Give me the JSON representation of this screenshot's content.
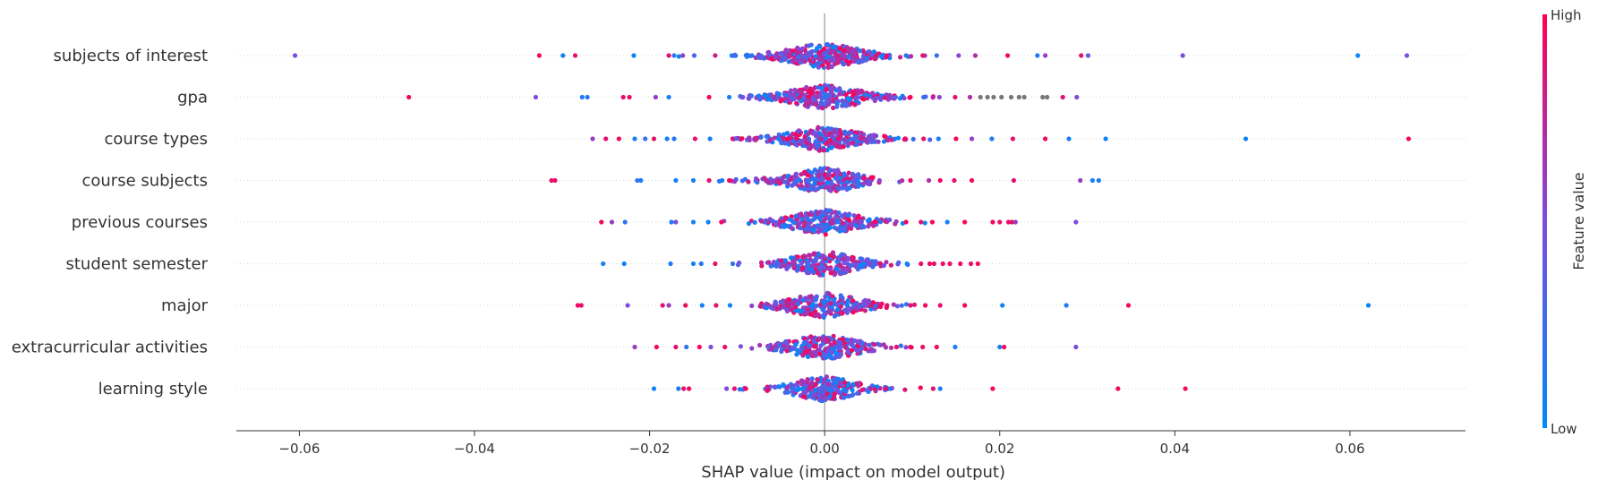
{
  "chart_data": {
    "type": "scatter",
    "subtype": "shap-beeswarm",
    "xlabel": "SHAP value (impact on model output)",
    "xlim": [
      -0.0672,
      0.0732
    ],
    "xticks": [
      -0.06,
      -0.04,
      -0.02,
      0.0,
      0.02,
      0.04,
      0.06
    ],
    "xtick_labels": [
      "−0.06",
      "−0.04",
      "−0.02",
      "0.00",
      "0.02",
      "0.04",
      "0.06"
    ],
    "features": [
      {
        "name": "subjects of interest",
        "points": [
          {
            "x": -0.0605,
            "v": 0.5
          },
          {
            "x": -0.0326,
            "v": 0.95
          },
          {
            "x": -0.0299,
            "v": 0.1
          },
          {
            "x": -0.0285,
            "v": 0.9
          },
          {
            "x": -0.0218,
            "v": 0.05
          },
          {
            "x": -0.0178,
            "v": 0.9
          },
          {
            "x": -0.0172,
            "v": 0.2
          },
          {
            "x": -0.0162,
            "v": 0.6
          },
          {
            "x": -0.0149,
            "v": 0.3
          },
          {
            "x": -0.0125,
            "v": 0.8
          },
          {
            "x": -0.0083,
            "v": 0.1
          },
          {
            "x": 0.0071,
            "v": 0.9
          },
          {
            "x": 0.0093,
            "v": 0.15
          },
          {
            "x": 0.0112,
            "v": 0.9
          },
          {
            "x": 0.0128,
            "v": 0.2
          },
          {
            "x": 0.0153,
            "v": 0.55
          },
          {
            "x": 0.0172,
            "v": 0.7
          },
          {
            "x": 0.0209,
            "v": 0.95
          },
          {
            "x": 0.0243,
            "v": 0.1
          },
          {
            "x": 0.0252,
            "v": 0.6
          },
          {
            "x": 0.0293,
            "v": 0.9
          },
          {
            "x": 0.0301,
            "v": 0.4
          },
          {
            "x": 0.0409,
            "v": 0.5
          },
          {
            "x": 0.0609,
            "v": 0.05
          },
          {
            "x": 0.0665,
            "v": 0.5
          }
        ],
        "core": {
          "center": 0.0,
          "spread": 0.0075,
          "halfwidth": 0.0042,
          "count": 330
        }
      },
      {
        "name": "gpa",
        "points": [
          {
            "x": -0.0475,
            "v": 0.95
          },
          {
            "x": -0.033,
            "v": 0.5
          },
          {
            "x": -0.0277,
            "v": 0.1
          },
          {
            "x": -0.0271,
            "v": 0.15
          },
          {
            "x": -0.023,
            "v": 0.9
          },
          {
            "x": -0.0223,
            "v": 0.95
          },
          {
            "x": -0.0193,
            "v": 0.6
          },
          {
            "x": -0.0178,
            "v": 0.1
          },
          {
            "x": -0.0132,
            "v": 0.95
          },
          {
            "x": -0.0109,
            "v": 0.1
          },
          {
            "x": 0.0098,
            "v": 0.95
          },
          {
            "x": 0.0113,
            "v": 0.2
          },
          {
            "x": 0.0131,
            "v": 0.55
          },
          {
            "x": 0.0149,
            "v": 0.9
          },
          {
            "x": 0.0166,
            "v": 0.7
          },
          {
            "x": 0.0178,
            "v": null
          },
          {
            "x": 0.0186,
            "v": null
          },
          {
            "x": 0.0193,
            "v": null
          },
          {
            "x": 0.0202,
            "v": null
          },
          {
            "x": 0.0213,
            "v": null
          },
          {
            "x": 0.0222,
            "v": null
          },
          {
            "x": 0.0228,
            "v": null
          },
          {
            "x": 0.0249,
            "v": null
          },
          {
            "x": 0.0254,
            "v": null
          },
          {
            "x": 0.0272,
            "v": 0.9
          },
          {
            "x": 0.0288,
            "v": 0.5
          }
        ],
        "core": {
          "center": 0.0,
          "spread": 0.0075,
          "halfwidth": 0.0042,
          "count": 300
        }
      },
      {
        "name": "course types",
        "points": [
          {
            "x": -0.0265,
            "v": 0.6
          },
          {
            "x": -0.025,
            "v": 0.9
          },
          {
            "x": -0.0235,
            "v": 0.95
          },
          {
            "x": -0.0217,
            "v": 0.1
          },
          {
            "x": -0.0205,
            "v": 0.2
          },
          {
            "x": -0.0195,
            "v": 0.9
          },
          {
            "x": -0.018,
            "v": 0.1
          },
          {
            "x": -0.0172,
            "v": 0.15
          },
          {
            "x": -0.0148,
            "v": 0.9
          },
          {
            "x": -0.0131,
            "v": 0.1
          },
          {
            "x": 0.0092,
            "v": 0.95
          },
          {
            "x": 0.0113,
            "v": 0.9
          },
          {
            "x": 0.013,
            "v": 0.1
          },
          {
            "x": 0.015,
            "v": 0.95
          },
          {
            "x": 0.0168,
            "v": 0.6
          },
          {
            "x": 0.0191,
            "v": 0.1
          },
          {
            "x": 0.0215,
            "v": 0.9
          },
          {
            "x": 0.0252,
            "v": 0.95
          },
          {
            "x": 0.0279,
            "v": 0.1
          },
          {
            "x": 0.0321,
            "v": 0.05
          },
          {
            "x": 0.0481,
            "v": 0.05
          },
          {
            "x": 0.0667,
            "v": 0.95
          }
        ],
        "core": {
          "center": 0.0,
          "spread": 0.0075,
          "halfwidth": 0.004,
          "count": 300
        }
      },
      {
        "name": "course subjects",
        "points": [
          {
            "x": -0.0312,
            "v": 0.95
          },
          {
            "x": -0.0308,
            "v": 0.9
          },
          {
            "x": -0.0214,
            "v": 0.2
          },
          {
            "x": -0.021,
            "v": 0.1
          },
          {
            "x": -0.017,
            "v": 0.05
          },
          {
            "x": -0.015,
            "v": 0.1
          },
          {
            "x": -0.0132,
            "v": 0.9
          },
          {
            "x": -0.0117,
            "v": 0.1
          },
          {
            "x": -0.0109,
            "v": 0.95
          },
          {
            "x": 0.0098,
            "v": 0.9
          },
          {
            "x": 0.0119,
            "v": 0.7
          },
          {
            "x": 0.0132,
            "v": 0.95
          },
          {
            "x": 0.0148,
            "v": 0.9
          },
          {
            "x": 0.0168,
            "v": 0.95
          },
          {
            "x": 0.0216,
            "v": 0.9
          },
          {
            "x": 0.0292,
            "v": 0.6
          },
          {
            "x": 0.0306,
            "v": 0.1
          },
          {
            "x": 0.0313,
            "v": 0.1
          }
        ],
        "core": {
          "center": 0.0,
          "spread": 0.007,
          "halfwidth": 0.004,
          "count": 280
        }
      },
      {
        "name": "previous courses",
        "points": [
          {
            "x": -0.0255,
            "v": 0.95
          },
          {
            "x": -0.0243,
            "v": 0.6
          },
          {
            "x": -0.0228,
            "v": 0.2
          },
          {
            "x": -0.0175,
            "v": 0.1
          },
          {
            "x": -0.017,
            "v": 0.5
          },
          {
            "x": -0.015,
            "v": 0.1
          },
          {
            "x": -0.0133,
            "v": 0.05
          },
          {
            "x": -0.0118,
            "v": 0.95
          },
          {
            "x": 0.0093,
            "v": 0.95
          },
          {
            "x": 0.011,
            "v": 0.9
          },
          {
            "x": 0.0123,
            "v": 0.95
          },
          {
            "x": 0.014,
            "v": 0.1
          },
          {
            "x": 0.016,
            "v": 0.95
          },
          {
            "x": 0.0192,
            "v": 0.95
          },
          {
            "x": 0.02,
            "v": 0.9
          },
          {
            "x": 0.021,
            "v": 0.9
          },
          {
            "x": 0.0214,
            "v": 0.95
          },
          {
            "x": 0.0218,
            "v": 0.6
          },
          {
            "x": 0.0287,
            "v": 0.5
          }
        ],
        "core": {
          "center": 0.0,
          "spread": 0.0065,
          "halfwidth": 0.004,
          "count": 280
        }
      },
      {
        "name": "student semester",
        "points": [
          {
            "x": -0.0253,
            "v": 0.1
          },
          {
            "x": -0.0229,
            "v": 0.05
          },
          {
            "x": -0.0176,
            "v": 0.1
          },
          {
            "x": -0.015,
            "v": 0.05
          },
          {
            "x": -0.0141,
            "v": 0.15
          },
          {
            "x": -0.0125,
            "v": 0.9
          },
          {
            "x": -0.0105,
            "v": 0.2
          },
          {
            "x": 0.0094,
            "v": 0.05
          },
          {
            "x": 0.011,
            "v": 0.9
          },
          {
            "x": 0.012,
            "v": 0.95
          },
          {
            "x": 0.0125,
            "v": 0.9
          },
          {
            "x": 0.0135,
            "v": 0.95
          },
          {
            "x": 0.0143,
            "v": 0.9
          },
          {
            "x": 0.0155,
            "v": 0.95
          },
          {
            "x": 0.0167,
            "v": 0.9
          },
          {
            "x": 0.0175,
            "v": 0.95
          }
        ],
        "core": {
          "center": 0.0,
          "spread": 0.006,
          "halfwidth": 0.0038,
          "count": 260
        }
      },
      {
        "name": "major",
        "points": [
          {
            "x": -0.0282,
            "v": 0.95
          },
          {
            "x": -0.0278,
            "v": 0.9
          },
          {
            "x": -0.0225,
            "v": 0.5
          },
          {
            "x": -0.0185,
            "v": 0.9
          },
          {
            "x": -0.0178,
            "v": 0.6
          },
          {
            "x": -0.0159,
            "v": 0.95
          },
          {
            "x": -0.014,
            "v": 0.1
          },
          {
            "x": -0.0124,
            "v": 0.9
          },
          {
            "x": -0.0108,
            "v": 0.05
          },
          {
            "x": 0.0098,
            "v": 0.9
          },
          {
            "x": 0.0115,
            "v": 0.95
          },
          {
            "x": 0.0132,
            "v": 0.9
          },
          {
            "x": 0.016,
            "v": 0.95
          },
          {
            "x": 0.0203,
            "v": 0.05
          },
          {
            "x": 0.0276,
            "v": 0.1
          },
          {
            "x": 0.0347,
            "v": 0.95
          },
          {
            "x": 0.0621,
            "v": 0.05
          }
        ],
        "core": {
          "center": 0.0,
          "spread": 0.0065,
          "halfwidth": 0.004,
          "count": 270
        }
      },
      {
        "name": "extracurricular activities",
        "points": [
          {
            "x": -0.0217,
            "v": 0.6
          },
          {
            "x": -0.0192,
            "v": 0.95
          },
          {
            "x": -0.017,
            "v": 0.9
          },
          {
            "x": -0.0158,
            "v": 0.2
          },
          {
            "x": -0.0143,
            "v": 0.95
          },
          {
            "x": -0.013,
            "v": 0.5
          },
          {
            "x": -0.0114,
            "v": 0.9
          },
          {
            "x": 0.0082,
            "v": 0.9
          },
          {
            "x": 0.0098,
            "v": 0.95
          },
          {
            "x": 0.0112,
            "v": 0.9
          },
          {
            "x": 0.0128,
            "v": 0.95
          },
          {
            "x": 0.0149,
            "v": 0.1
          },
          {
            "x": 0.02,
            "v": 0.1
          },
          {
            "x": 0.0205,
            "v": 0.95
          },
          {
            "x": 0.0287,
            "v": 0.5
          }
        ],
        "core": {
          "center": 0.0,
          "spread": 0.0065,
          "halfwidth": 0.004,
          "count": 270
        }
      },
      {
        "name": "learning style",
        "points": [
          {
            "x": -0.0195,
            "v": 0.05
          },
          {
            "x": -0.0167,
            "v": 0.1
          },
          {
            "x": -0.0161,
            "v": 0.9
          },
          {
            "x": -0.0155,
            "v": 0.95
          },
          {
            "x": -0.0112,
            "v": 0.5
          },
          {
            "x": -0.0103,
            "v": 0.9
          },
          {
            "x": -0.009,
            "v": 0.95
          },
          {
            "x": 0.007,
            "v": 0.9
          },
          {
            "x": 0.0075,
            "v": 0.2
          },
          {
            "x": 0.0124,
            "v": 0.9
          },
          {
            "x": 0.0132,
            "v": 0.1
          },
          {
            "x": 0.0192,
            "v": 0.95
          },
          {
            "x": 0.0335,
            "v": 0.95
          },
          {
            "x": 0.0412,
            "v": 0.95
          }
        ],
        "core": {
          "center": 0.0,
          "spread": 0.0055,
          "halfwidth": 0.0036,
          "count": 250
        }
      }
    ],
    "colorbar": {
      "title": "Feature value",
      "high_label": "High",
      "low_label": "Low",
      "low_color": "#008afb",
      "mid_color": "#7b4dde",
      "high_color": "#ff0052",
      "missing_color": "#777777"
    }
  }
}
